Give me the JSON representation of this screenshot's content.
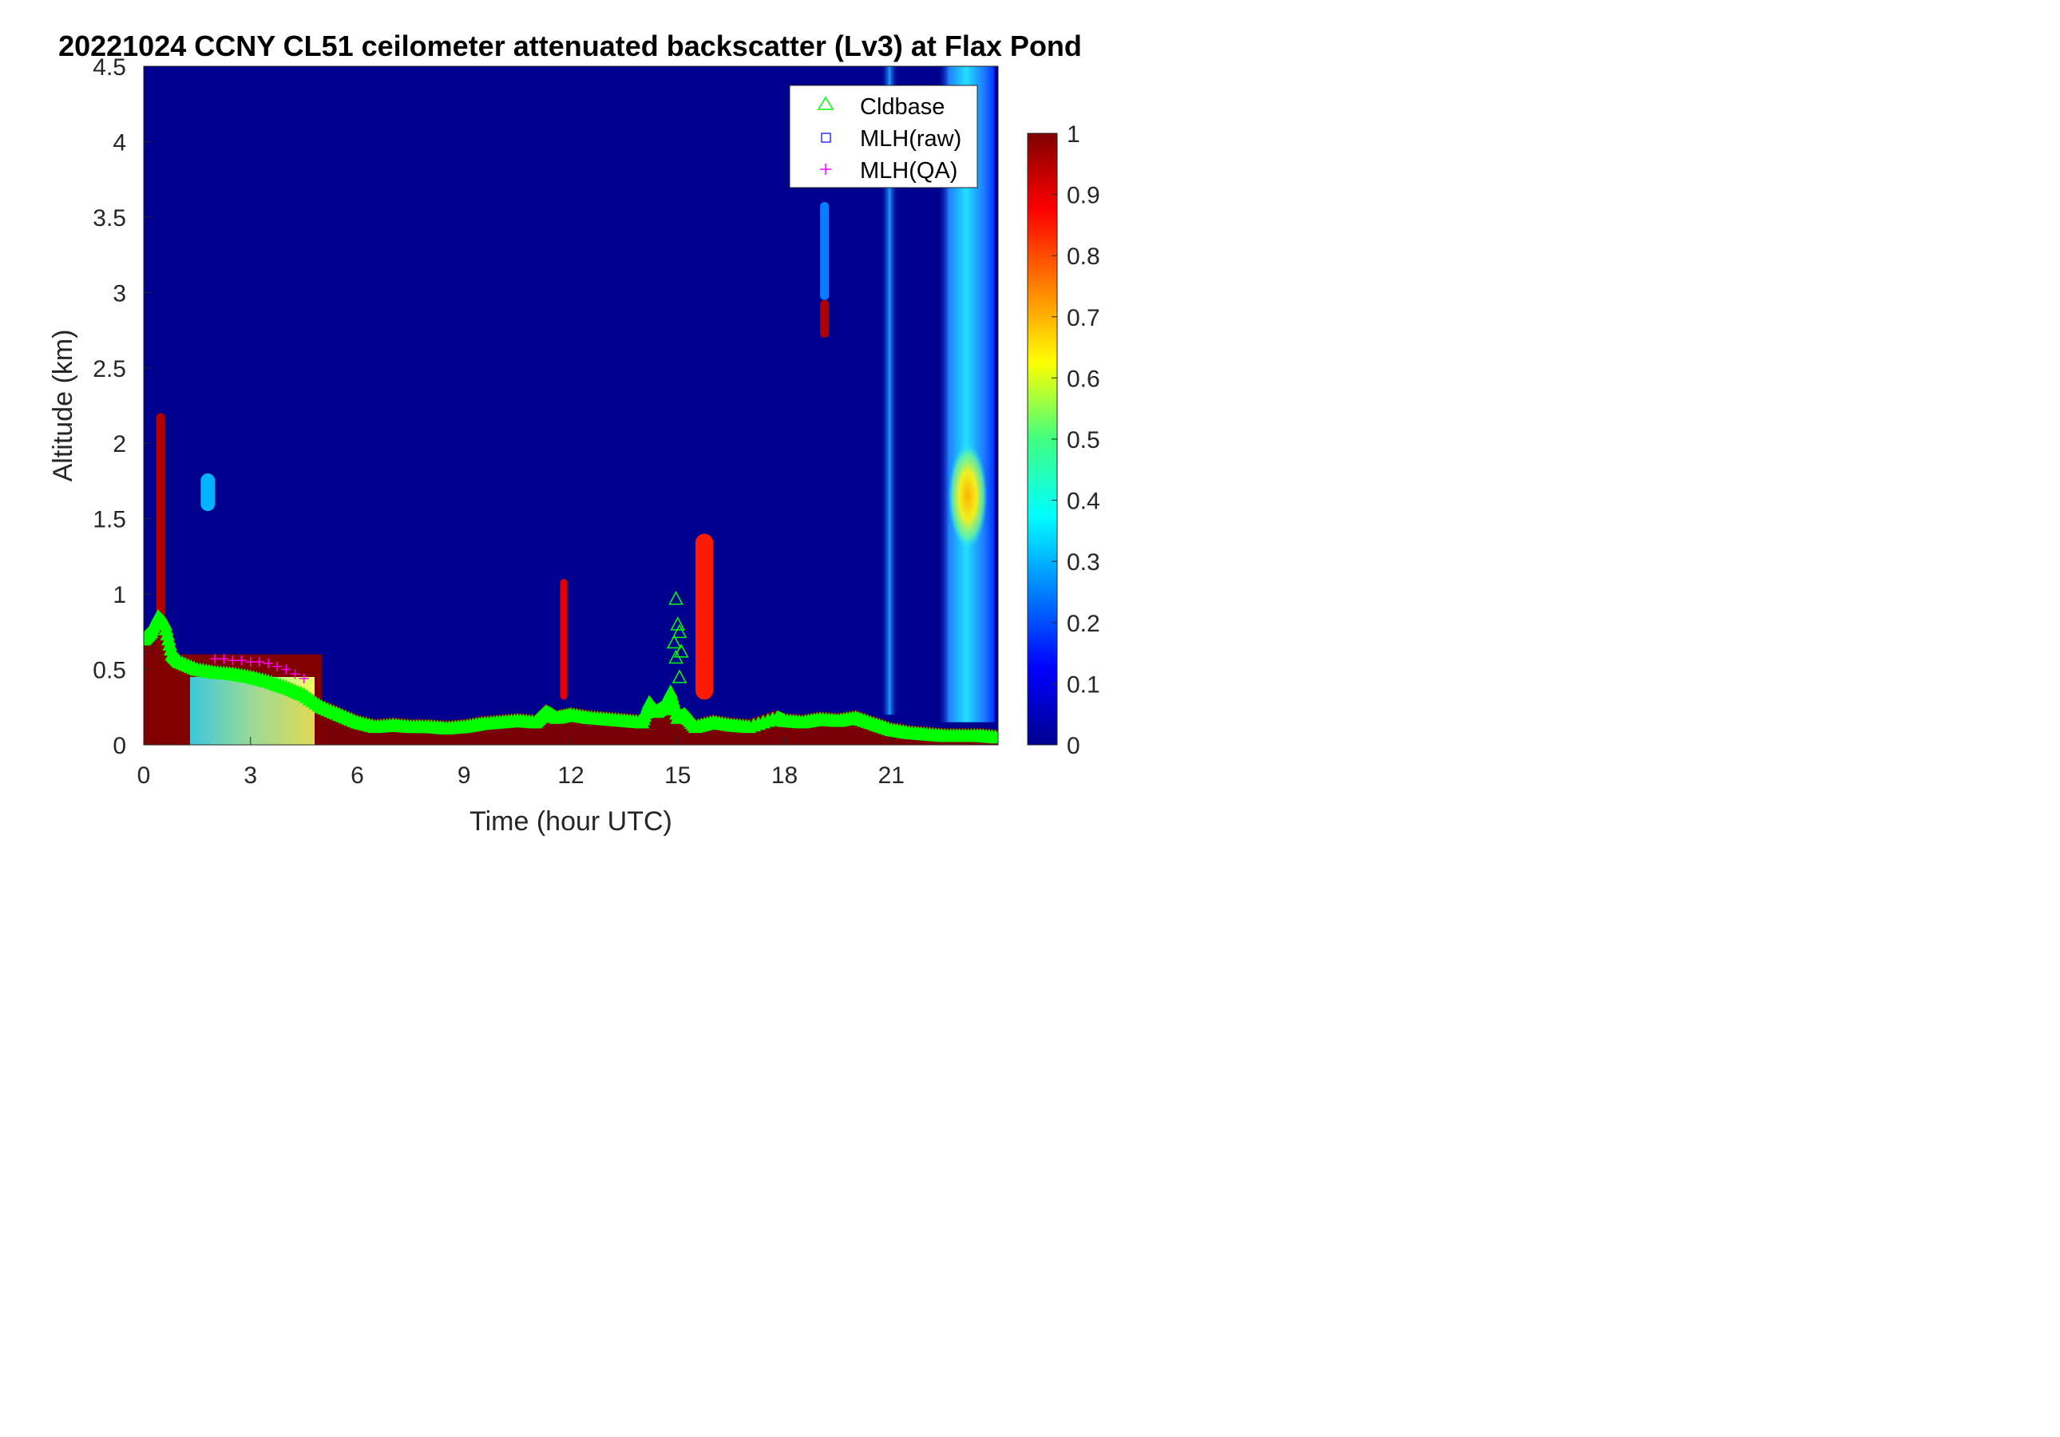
{
  "chart_data": {
    "type": "heatmap",
    "title": "20221024 CCNY CL51 ceilometer attenuated backscatter (Lv3) at Flax Pond",
    "xlabel": "Time (hour UTC)",
    "ylabel": "Altitude (km)",
    "xlim": [
      0,
      24
    ],
    "ylim": [
      0,
      4.5
    ],
    "xticks": [
      0,
      3,
      6,
      9,
      12,
      15,
      18,
      21
    ],
    "yticks": [
      0,
      0.5,
      1,
      1.5,
      2,
      2.5,
      3,
      3.5,
      4,
      4.5
    ],
    "colorbar": {
      "colormap": "jet",
      "range": [
        0,
        1
      ],
      "ticks": [
        0,
        0.1,
        0.2,
        0.3,
        0.4,
        0.5,
        0.6,
        0.7,
        0.8,
        0.9,
        1
      ]
    },
    "legend": {
      "position": "top-right",
      "entries": [
        {
          "name": "Cldbase",
          "marker": "triangle",
          "color": "#00ff00"
        },
        {
          "name": "MLH(raw)",
          "marker": "square",
          "color": "#0000ff"
        },
        {
          "name": "MLH(QA)",
          "marker": "plus",
          "color": "#ff00ff"
        }
      ]
    },
    "features": [
      {
        "t": [
          0,
          5.0
        ],
        "alt": [
          0,
          0.6
        ],
        "value": 1.0
      },
      {
        "t": [
          1.3,
          4.8
        ],
        "alt": [
          0,
          0.45
        ],
        "value": 0.55
      },
      {
        "t": [
          0.35,
          0.6
        ],
        "alt": [
          0.6,
          2.2
        ],
        "value": 0.95
      },
      {
        "t": [
          1.6,
          2.0
        ],
        "alt": [
          1.55,
          1.8
        ],
        "value": 0.3
      },
      {
        "t": [
          19.0,
          19.25
        ],
        "alt": [
          2.7,
          2.95
        ],
        "value": 0.95
      },
      {
        "t": [
          19.0,
          19.25
        ],
        "alt": [
          2.95,
          3.6
        ],
        "value": 0.25
      },
      {
        "t": [
          20.7,
          21.2
        ],
        "alt": [
          0.2,
          4.5
        ],
        "value": 0.25
      },
      {
        "t": [
          22.3,
          23.9
        ],
        "alt": [
          0.15,
          4.5
        ],
        "value": 0.35
      },
      {
        "t": [
          22.6,
          23.7
        ],
        "alt": [
          1.3,
          2.0
        ],
        "value": 0.65
      },
      {
        "t": [
          11.7,
          11.9
        ],
        "alt": [
          0.3,
          1.1
        ],
        "value": 0.9
      },
      {
        "t": [
          15.5,
          16.0
        ],
        "alt": [
          0.3,
          1.4
        ],
        "value": 0.85
      }
    ],
    "series": [
      {
        "name": "Cldbase",
        "x": [
          0,
          0.2,
          0.4,
          0.6,
          0.8,
          1,
          1.5,
          2,
          2.5,
          3,
          3.5,
          4,
          4.5,
          5,
          5.5,
          6,
          6.5,
          7,
          7.5,
          8,
          8.5,
          9,
          9.5,
          10,
          10.5,
          11,
          11.3,
          11.6,
          12,
          12.5,
          13,
          13.5,
          14,
          14.2,
          14.4,
          14.6,
          14.8,
          15,
          15.2,
          15.5,
          16,
          16.5,
          17,
          17.8,
          18,
          18.5,
          19,
          19.5,
          20,
          20.5,
          21,
          21.5,
          22,
          22.5,
          23,
          23.5,
          24
        ],
        "y": [
          0.7,
          0.75,
          0.85,
          0.8,
          0.6,
          0.55,
          0.5,
          0.48,
          0.47,
          0.45,
          0.42,
          0.38,
          0.33,
          0.25,
          0.2,
          0.15,
          0.12,
          0.13,
          0.12,
          0.12,
          0.11,
          0.12,
          0.14,
          0.15,
          0.16,
          0.15,
          0.22,
          0.18,
          0.2,
          0.18,
          0.17,
          0.16,
          0.15,
          0.28,
          0.22,
          0.25,
          0.35,
          0.18,
          0.2,
          0.12,
          0.15,
          0.13,
          0.12,
          0.18,
          0.16,
          0.15,
          0.17,
          0.16,
          0.18,
          0.14,
          0.1,
          0.08,
          0.07,
          0.06,
          0.06,
          0.06,
          0.05
        ]
      },
      {
        "name": "Cldbase",
        "x": [
          14.95,
          15.0,
          15.05,
          14.9,
          15.1,
          14.95,
          15.05
        ],
        "y": [
          0.97,
          0.8,
          0.75,
          0.68,
          0.62,
          0.58,
          0.45
        ]
      },
      {
        "name": "MLH(QA)",
        "x": [
          2.0,
          2.25,
          2.5,
          2.75,
          3.0,
          3.25,
          3.5,
          3.75,
          4.0,
          4.25,
          4.5
        ],
        "y": [
          0.57,
          0.57,
          0.56,
          0.56,
          0.55,
          0.55,
          0.54,
          0.52,
          0.5,
          0.47,
          0.44
        ]
      }
    ]
  }
}
